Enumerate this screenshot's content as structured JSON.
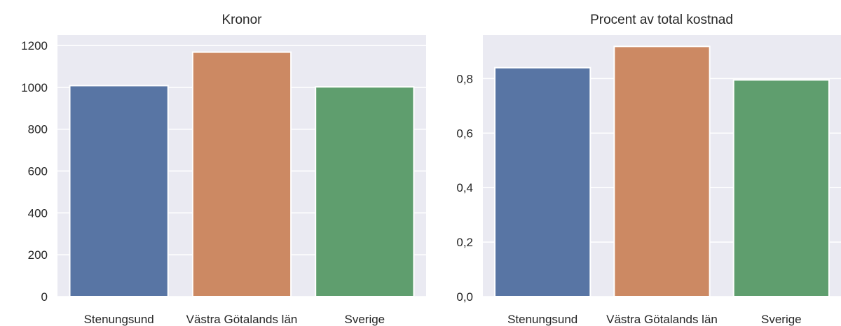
{
  "chart_data": [
    {
      "type": "bar",
      "title": "Kronor",
      "categories": [
        "Stenungsund",
        "Västra Götalands län",
        "Sverige"
      ],
      "values": [
        1008,
        1168,
        1002
      ],
      "colors": [
        "#5875a4",
        "#cc8963",
        "#5f9e6e"
      ],
      "ylim": [
        0,
        1250
      ],
      "yticks": [
        0,
        200,
        400,
        600,
        800,
        1000,
        1200
      ],
      "ytick_labels": [
        "0",
        "200",
        "400",
        "600",
        "800",
        "1000",
        "1200"
      ],
      "grid": true,
      "xlabel": "",
      "ylabel": ""
    },
    {
      "type": "bar",
      "title": "Procent av total kostnad",
      "categories": [
        "Stenungsund",
        "Västra Götalands län",
        "Sverige"
      ],
      "values": [
        0.84,
        0.918,
        0.795
      ],
      "colors": [
        "#5875a4",
        "#cc8963",
        "#5f9e6e"
      ],
      "ylim": [
        0,
        0.96
      ],
      "yticks": [
        0,
        0.2,
        0.4,
        0.6,
        0.8
      ],
      "ytick_labels": [
        "0,0",
        "0,2",
        "0,4",
        "0,6",
        "0,8"
      ],
      "grid": true,
      "xlabel": "",
      "ylabel": ""
    }
  ],
  "style": {
    "plot_background": "#eaeaf2",
    "grid_color": "#ffffff",
    "text_color": "#262626"
  }
}
